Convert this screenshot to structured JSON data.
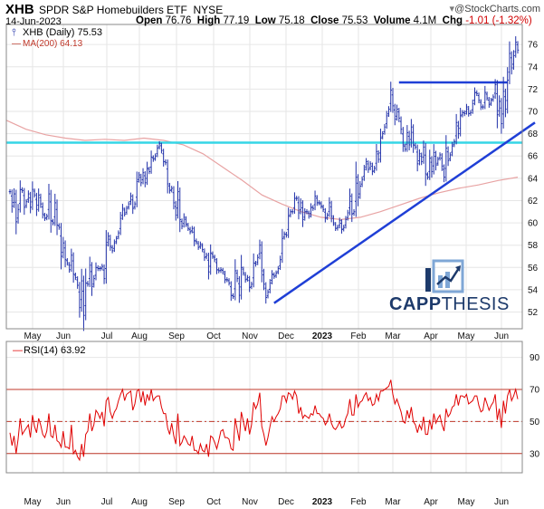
{
  "header": {
    "symbol": "XHB",
    "name": "SPDR S&P Homebuilders ETF",
    "exchange": "NYSE",
    "date": "14-Jun-2023",
    "open_label": "Open",
    "open": "76.76",
    "high_label": "High",
    "high": "77.19",
    "low_label": "Low",
    "low": "75.18",
    "close_label": "Close",
    "close": "75.53",
    "volume_label": "Volume",
    "volume": "4.1M",
    "chg_label": "Chg",
    "chg": "-1.01 (-1.32%)",
    "credit": "@StockCharts.com",
    "credit_icon": "arrow-down-icon"
  },
  "legend": {
    "price": "XHB (Daily) 75.53",
    "ma": "MA(200) 64.13",
    "rsi": "RSI(14) 63.92"
  },
  "logo": {
    "text_bold": "CAPP",
    "text_thin": "THESIS"
  },
  "colors": {
    "price": "#1f2fa8",
    "ma": "#e8a3a3",
    "trendline": "#1f3fd6",
    "support": "#35d6e6",
    "rsi": "#e00000",
    "rsi_band": "#c0392b",
    "grid": "#e6e6e6"
  },
  "chart_data": [
    {
      "type": "ohlc",
      "title": "XHB SPDR S&P Homebuilders ETF (Daily)",
      "x_labels": [
        "May",
        "Jun",
        "Jul",
        "Aug",
        "Sep",
        "Oct",
        "Nov",
        "Dec",
        "2023",
        "Feb",
        "Mar",
        "Apr",
        "May",
        "Jun"
      ],
      "y_ticks": [
        52,
        54,
        56,
        58,
        60,
        62,
        64,
        66,
        68,
        70,
        72,
        74,
        76
      ],
      "ylim": [
        50.5,
        77.8
      ],
      "series": [
        {
          "name": "XHB (Daily)",
          "values": [
            62.8,
            61.5,
            62.6,
            60.1,
            61.2,
            63.0,
            62.9,
            61.4,
            61.9,
            62.6,
            61.4,
            63.0,
            62.5,
            61.2,
            62.5,
            61.7,
            60.8,
            60.4,
            60.6,
            62.6,
            60.2,
            60.0,
            61.8,
            59.8,
            59.6,
            57.0,
            58.2,
            56.7,
            56.4,
            55.8,
            57.1,
            55.4,
            55.1,
            54.4,
            52.4,
            54.8,
            51.7,
            54.6,
            54.5,
            56.2,
            54.3,
            55.0,
            56.0,
            55.9,
            55.9,
            56.1,
            55.0,
            58.0,
            58.8,
            57.9,
            57.5,
            58.2,
            58.6,
            59.1,
            60.4,
            61.3,
            60.8,
            61.3,
            61.7,
            62.4,
            61.3,
            61.7,
            63.7,
            64.3,
            63.6,
            64.5,
            63.6,
            64.9,
            64.6,
            65.9,
            65.7,
            66.0,
            66.7,
            67.1,
            66.5,
            65.5,
            65.4,
            63.5,
            62.9,
            63.1,
            61.8,
            60.7,
            62.8,
            60.3,
            59.7,
            60.5,
            59.9,
            59.5,
            59.2,
            59.5,
            58.4,
            58.3,
            57.8,
            58.1,
            57.6,
            56.9,
            57.1,
            55.6,
            57.3,
            57.0,
            56.7,
            55.8,
            55.7,
            55.8,
            55.6,
            54.9,
            54.9,
            54.6,
            53.5,
            53.4,
            55.7,
            55.0,
            53.5,
            56.0,
            55.5,
            54.9,
            55.1,
            54.2,
            54.5,
            56.4,
            56.3,
            56.9,
            58.0,
            55.7,
            54.5,
            53.3,
            53.8,
            54.6,
            55.4,
            55.2,
            55.5,
            55.9,
            56.7,
            58.6,
            59.0,
            58.9,
            60.6,
            61.0,
            61.0,
            62.2,
            62.2,
            60.9,
            61.8,
            60.3,
            61.0,
            61.0,
            60.6,
            61.4,
            61.3,
            62.4,
            61.8,
            61.8,
            61.5,
            61.2,
            60.4,
            60.7,
            61.8,
            60.6,
            60.0,
            59.5,
            59.6,
            60.2,
            59.4,
            59.6,
            60.3,
            60.9,
            62.4,
            60.8,
            61.0,
            64.1,
            62.3,
            63.3,
            63.9,
            64.8,
            65.5,
            64.8,
            65.3,
            64.6,
            64.9,
            66.4,
            65.7,
            67.6,
            68.0,
            68.6,
            69.6,
            70.2,
            71.9,
            70.5,
            69.3,
            70.2,
            69.4,
            68.4,
            67.0,
            66.6,
            68.1,
            67.0,
            68.6,
            67.0,
            66.8,
            65.3,
            66.2,
            65.5,
            66.8,
            64.4,
            64.1,
            65.8,
            64.6,
            66.3,
            65.2,
            65.7,
            66.1,
            65.1,
            64.1,
            66.7,
            65.6,
            66.1,
            66.9,
            67.3,
            69.0,
            68.0,
            69.6,
            69.9,
            69.8,
            70.4,
            69.8,
            69.9,
            70.7,
            71.7,
            71.6,
            71.0,
            70.4,
            70.4,
            71.7,
            71.2,
            70.6,
            71.0,
            71.3,
            72.4,
            69.7,
            70.9,
            68.9,
            71.8,
            70.2,
            72.8,
            75.2,
            73.9,
            75.0,
            76.2,
            75.5
          ]
        },
        {
          "name": "MA(200)",
          "values": [
            69.2,
            68.4,
            67.9,
            67.6,
            67.4,
            67.5,
            67.4,
            67.6,
            67.4,
            67.0,
            66.2,
            65.0,
            63.8,
            62.5,
            61.7,
            61.0,
            60.5,
            60.3,
            60.5,
            61.0,
            61.6,
            62.2,
            62.7,
            63.1,
            63.4,
            63.8,
            64.1
          ]
        }
      ],
      "annotations": {
        "resistance": 72.6,
        "support": 67.2,
        "trendline_start": 52.8,
        "trendline_end": 69.0
      }
    },
    {
      "type": "line",
      "title": "RSI(14)",
      "x_labels": [
        "May",
        "Jun",
        "Jul",
        "Aug",
        "Sep",
        "Oct",
        "Nov",
        "Dec",
        "2023",
        "Feb",
        "Mar",
        "Apr",
        "May",
        "Jun"
      ],
      "y_ticks": [
        30,
        50,
        70,
        90
      ],
      "ylim": [
        18,
        100
      ],
      "bands": [
        70,
        50,
        30
      ],
      "series": [
        {
          "name": "RSI(14)",
          "values": [
            43,
            35,
            41,
            30,
            39,
            52,
            42,
            44,
            46,
            48,
            40,
            54,
            47,
            43,
            52,
            48,
            42,
            40,
            44,
            55,
            41,
            40,
            48,
            38,
            37,
            34,
            44,
            34,
            34,
            33,
            48,
            30,
            32,
            28,
            26,
            36,
            28,
            42,
            44,
            55,
            44,
            48,
            57,
            55,
            52,
            56,
            47,
            63,
            65,
            56,
            52,
            56,
            58,
            63,
            67,
            70,
            63,
            67,
            68,
            69,
            57,
            61,
            69,
            70,
            62,
            69,
            60,
            67,
            63,
            70,
            63,
            65,
            66,
            66,
            59,
            55,
            55,
            46,
            42,
            49,
            41,
            36,
            55,
            35,
            37,
            41,
            39,
            36,
            35,
            41,
            32,
            32,
            30,
            36,
            32,
            31,
            36,
            28,
            41,
            40,
            37,
            33,
            38,
            44,
            45,
            40,
            40,
            39,
            33,
            32,
            52,
            45,
            38,
            56,
            50,
            44,
            52,
            42,
            48,
            62,
            58,
            61,
            68,
            47,
            42,
            35,
            40,
            47,
            53,
            50,
            53,
            55,
            58,
            66,
            66,
            62,
            68,
            67,
            64,
            69,
            66,
            55,
            59,
            52,
            54,
            53,
            52,
            55,
            54,
            60,
            55,
            55,
            53,
            52,
            48,
            50,
            55,
            49,
            46,
            45,
            47,
            50,
            46,
            47,
            52,
            55,
            64,
            54,
            54,
            67,
            59,
            62,
            63,
            66,
            68,
            63,
            65,
            60,
            61,
            67,
            63,
            69,
            69,
            70,
            71,
            72,
            76,
            67,
            61,
            64,
            60,
            56,
            50,
            49,
            57,
            52,
            59,
            50,
            48,
            43,
            48,
            45,
            53,
            42,
            42,
            51,
            45,
            55,
            49,
            52,
            54,
            48,
            44,
            58,
            53,
            55,
            59,
            60,
            67,
            60,
            66,
            66,
            65,
            67,
            61,
            62,
            63,
            66,
            66,
            60,
            56,
            57,
            65,
            61,
            57,
            60,
            62,
            67,
            51,
            58,
            46,
            63,
            55,
            66,
            70,
            63,
            66,
            70,
            64
          ]
        }
      ]
    }
  ]
}
